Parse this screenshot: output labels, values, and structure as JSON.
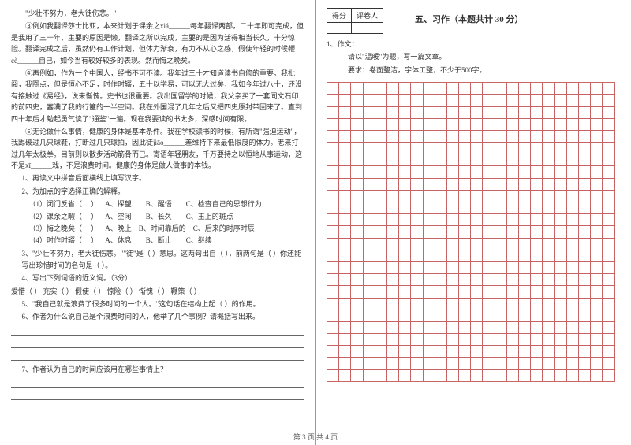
{
  "left": {
    "quote": "\"少壮不努力，老大徒伤悲。\"",
    "p1": "③例如我翻译莎士比亚，本来计划于课余之xiá______每年翻译两部，二十年即可完成，但是我用了三十年，主要的原因是懒，翻译之所以完成，主要的是因为活得相当长久，十分惊险。翻译完成之后，虽然仍有工作计划，但体力渐衰，有力不从心之感，假使年轻的时候鞭cè______自己，如今当有较好较多的表现。然而悔之晚矣。",
    "p2": "④再例如，作为一个中国人，经书不可不读。我年过三十才知道读书自修的重要。我批阅，我圈点，但是恒心不足，时作时辍，五十以学易，可以无大过矣，我如今年过八十，还没有接触过《易经》，说来惭愧。史书也很重要。我出国留学的时候，我父亲买了一套同文石印的前四史，塞满了我的行箧的一半空间。我在外国混了几年之后又把四史原封带回来了。直到四十年后才勉起勇气读了\"通鉴\"一遍。现在我要读的书太多，深感时间有限。",
    "p3": "⑤无论做什么事情，健康的身体是基本条件。我在学校读书的时候，有所谓\"强迫运动\"，我踢破过几只球鞋，打断过几只球拍，因此徒jiāo______差维持下来最低限度的体力。老来打过几年太极拳。目前则以散步活动筋骨而已。寄语年轻朋友，千万要持之以恒地从事运动，这不是xī______戏，不是浪费时间。健康的身体是做人做事的本钱。",
    "q1": "1、再读文中拼音后面横线上填写汉字。",
    "q2": "2、为加点的字选择正确的解释。",
    "q2a_label": "（1）闭门反省（     ）",
    "q2a_opts": "A、探望        B、醒悟        C、检查自己的思想行为",
    "q2b_label": "（2）课余之暇（     ）",
    "q2b_opts": "A、空闲        B、长久        C、玉上的斑点",
    "q2c_label": "（3）悔之晚矣（     ）",
    "q2c_opts": "A、晚上    B、时间靠后的    C、后来的时序时辰",
    "q2d_label": "（4）时作时辍（     ）",
    "q2d_opts": "A、休息        B、断止        C、继续",
    "q3": "3、\"少壮不努力，老大徒伤悲。\"\"徒\"是（            ）意思。这两句出自（                ），前两句是（                                ）你还能写出珍惜时间的名句是（                ）。",
    "q4": "4、写出下列词语的近义词。（3分）",
    "q4_words": "爱惜（        ）    充实（        ）    假使（        ）    惊险（        ）    惭愧（        ）    鞭策（        ）",
    "q5": "5、\"我自己就是浪费了很多时间的一个人。\"这句话在结构上起（                ）的作用。",
    "q6": "6、作者为什么说自己是个浪费时间的人，他举了几个事例？请概括写出来。",
    "q7": "7、作者认为自己的时间应该用在哪些事情上？"
  },
  "right": {
    "score_h1": "得分",
    "score_h2": "评卷人",
    "section": "五、习作（本题共计 30 分）",
    "essay_num": "1、作文：",
    "essay_prompt": "请以\"温暖\"为题，写一篇文章。",
    "essay_req": "要求：卷面整洁，字体工整，不少于500字。",
    "grid": {
      "rows": 25,
      "cols": 24,
      "border_color": "#c86464"
    }
  },
  "footer": "第 3 页  共 4 页"
}
